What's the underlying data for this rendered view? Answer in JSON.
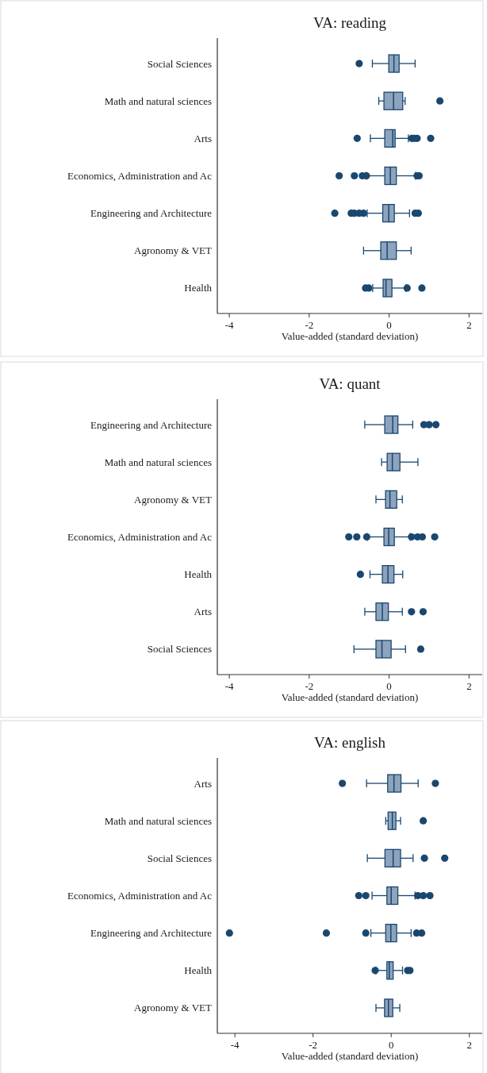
{
  "chart_data": [
    {
      "type": "box",
      "title": "VA: reading",
      "xlabel": "Value-added (standard deviation)",
      "orientation": "horizontal",
      "color": "#8ea3bd",
      "categories": [
        "Social Sciences",
        "Math and natural sciences",
        "Arts",
        "Economics, Administration and Ac",
        "Engineering and Architecture",
        "Agronomy & VET",
        "Health"
      ],
      "boxes": [
        {
          "low": -0.42,
          "q1": -0.01,
          "median": 0.12,
          "q3": 0.25,
          "high": 0.65,
          "outliers": [
            -0.75
          ]
        },
        {
          "low": -0.26,
          "q1": -0.13,
          "median": 0.11,
          "q3": 0.34,
          "high": 0.4,
          "outliers": [
            1.27
          ]
        },
        {
          "low": -0.47,
          "q1": -0.11,
          "median": 0.09,
          "q3": 0.15,
          "high": 0.48,
          "outliers": [
            -0.8,
            0.57,
            0.63,
            0.7,
            1.04
          ]
        },
        {
          "low": -0.57,
          "q1": -0.11,
          "median": 0.03,
          "q3": 0.18,
          "high": 0.66,
          "outliers": [
            -1.25,
            -0.87,
            -0.67,
            -0.57,
            0.7,
            0.75
          ]
        },
        {
          "low": -0.55,
          "q1": -0.16,
          "median": -0.01,
          "q3": 0.13,
          "high": 0.51,
          "outliers": [
            -1.36,
            -0.95,
            -0.87,
            -0.75,
            -0.64,
            0.65,
            0.73
          ]
        },
        {
          "low": -0.64,
          "q1": -0.21,
          "median": -0.05,
          "q3": 0.18,
          "high": 0.55
        },
        {
          "low": -0.41,
          "q1": -0.15,
          "median": -0.08,
          "q3": 0.07,
          "high": 0.42,
          "outliers": [
            -0.59,
            -0.51,
            0.45,
            0.82
          ]
        }
      ],
      "xlim": [
        -4.3,
        2.33
      ],
      "xticks": [
        -4,
        -2,
        0,
        2
      ]
    },
    {
      "type": "box",
      "title": "VA: quant",
      "xlabel": "Value-added (standard deviation)",
      "orientation": "horizontal",
      "color": "#8ea3bd",
      "categories": [
        "Engineering and Architecture",
        "Math and natural sciences",
        "Agronomy & VET",
        "Economics, Administration and Ac",
        "Health",
        "Arts",
        "Social Sciences"
      ],
      "boxes": [
        {
          "low": -0.61,
          "q1": -0.11,
          "median": 0.09,
          "q3": 0.22,
          "high": 0.59,
          "outliers": [
            0.87,
            1.0,
            1.17
          ]
        },
        {
          "low": -0.19,
          "q1": -0.05,
          "median": 0.08,
          "q3": 0.27,
          "high": 0.72
        },
        {
          "low": -0.33,
          "q1": -0.09,
          "median": 0.02,
          "q3": 0.19,
          "high": 0.33
        },
        {
          "low": -0.55,
          "q1": -0.13,
          "median": -0.01,
          "q3": 0.13,
          "high": 0.53,
          "outliers": [
            -1.01,
            -0.81,
            -0.56,
            0.56,
            0.71,
            0.83,
            1.14
          ]
        },
        {
          "low": -0.48,
          "q1": -0.17,
          "median": -0.03,
          "q3": 0.12,
          "high": 0.34,
          "outliers": [
            -0.72
          ]
        },
        {
          "low": -0.61,
          "q1": -0.33,
          "median": -0.17,
          "q3": -0.02,
          "high": 0.33,
          "outliers": [
            0.56,
            0.85
          ]
        },
        {
          "low": -0.88,
          "q1": -0.33,
          "median": -0.18,
          "q3": 0.05,
          "high": 0.41,
          "outliers": [
            0.79
          ]
        }
      ],
      "xlim": [
        -4.3,
        2.33
      ],
      "xticks": [
        -4,
        -2,
        0,
        2
      ]
    },
    {
      "type": "box",
      "title": "VA: english",
      "xlabel": "Value-added (standard deviation)",
      "orientation": "horizontal",
      "color": "#8ea3bd",
      "categories": [
        "Arts",
        "Math and natural sciences",
        "Social Sciences",
        "Economics, Administration and Ac",
        "Engineering and Architecture",
        "Health",
        "Agronomy & VET"
      ],
      "boxes": [
        {
          "low": -0.63,
          "q1": -0.09,
          "median": 0.07,
          "q3": 0.25,
          "high": 0.69,
          "outliers": [
            -1.25,
            1.13
          ]
        },
        {
          "low": -0.14,
          "q1": -0.08,
          "median": 0.03,
          "q3": 0.12,
          "high": 0.24,
          "outliers": [
            0.82
          ]
        },
        {
          "low": -0.61,
          "q1": -0.16,
          "median": 0.05,
          "q3": 0.24,
          "high": 0.56,
          "outliers": [
            0.85,
            1.37
          ]
        },
        {
          "low": -0.49,
          "q1": -0.11,
          "median": 0.0,
          "q3": 0.17,
          "high": 0.61,
          "outliers": [
            -0.83,
            -0.65,
            0.68,
            0.82,
            0.99
          ]
        },
        {
          "low": -0.52,
          "q1": -0.14,
          "median": -0.01,
          "q3": 0.14,
          "high": 0.51,
          "outliers": [
            -4.14,
            -1.66,
            -0.65,
            0.65,
            0.78
          ]
        },
        {
          "low": -0.39,
          "q1": -0.11,
          "median": -0.05,
          "q3": 0.05,
          "high": 0.29,
          "outliers": [
            -0.41,
            0.42,
            0.48
          ]
        },
        {
          "low": -0.39,
          "q1": -0.17,
          "median": -0.07,
          "q3": 0.04,
          "high": 0.22
        }
      ],
      "xlim": [
        -4.45,
        2.33
      ],
      "xticks": [
        -4,
        -2,
        0,
        2
      ]
    }
  ]
}
